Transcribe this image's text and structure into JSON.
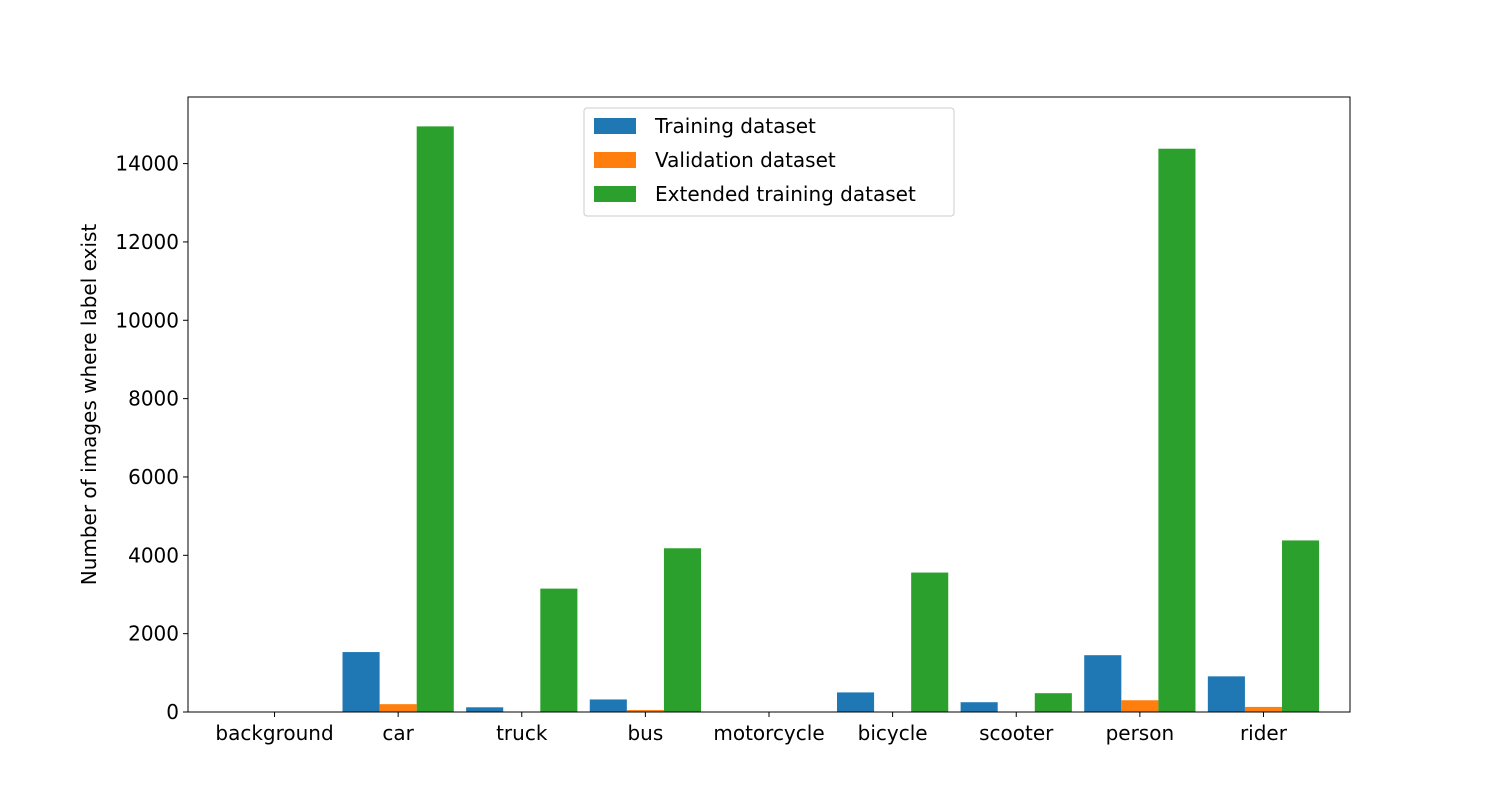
{
  "chart_data": {
    "type": "bar",
    "title": "",
    "xlabel": "",
    "ylabel": "Number of images where label exist",
    "categories": [
      "background",
      "car",
      "truck",
      "bus",
      "motorcycle",
      "bicycle",
      "scooter",
      "person",
      "rider"
    ],
    "series": [
      {
        "name": "Training dataset",
        "color": "#1f77b4",
        "values": [
          0,
          1530,
          120,
          320,
          0,
          500,
          250,
          1450,
          910
        ]
      },
      {
        "name": "Validation dataset",
        "color": "#ff7f0e",
        "values": [
          0,
          200,
          0,
          50,
          0,
          0,
          0,
          300,
          130
        ]
      },
      {
        "name": "Extended training dataset",
        "color": "#2ca02c",
        "values": [
          0,
          14950,
          3150,
          4180,
          0,
          3560,
          480,
          14380,
          4380
        ]
      }
    ],
    "ylim": [
      0,
      15700
    ],
    "yticks": [
      0,
      2000,
      4000,
      6000,
      8000,
      10000,
      12000,
      14000
    ],
    "grid": false,
    "legend_position": "top-center"
  }
}
